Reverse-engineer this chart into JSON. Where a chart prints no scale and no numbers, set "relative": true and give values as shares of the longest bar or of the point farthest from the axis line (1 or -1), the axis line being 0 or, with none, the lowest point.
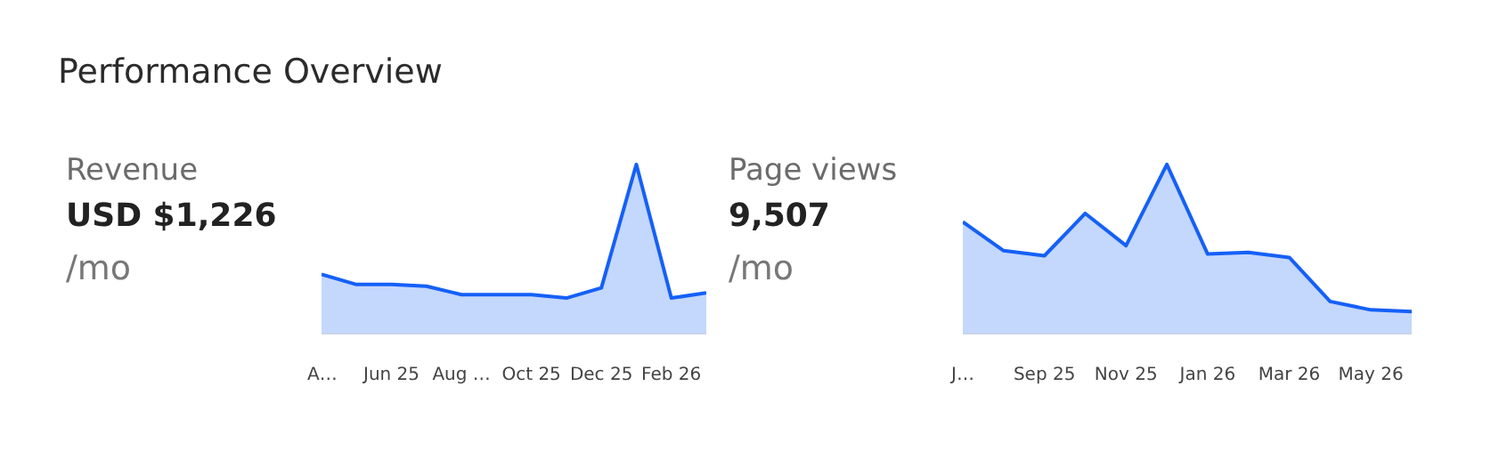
{
  "chart_data": [
    {
      "type": "other",
      "title": "Performance Overview"
    },
    {
      "type": "area",
      "title": "Revenue",
      "subtitle": "USD $1,226",
      "annotations": [
        "/mo"
      ],
      "relative": true,
      "color": "#1560f7",
      "categories": [
        "A…",
        null,
        "Jun 25",
        null,
        "Aug …",
        null,
        "Oct 25",
        null,
        "Dec 25",
        null,
        "Feb 26",
        null
      ],
      "values": [
        0.35,
        0.29,
        0.29,
        0.28,
        0.23,
        0.23,
        0.23,
        0.21,
        0.27,
        1,
        0.21,
        0.24
      ]
    },
    {
      "type": "area",
      "title": "Page views",
      "subtitle": "9,507",
      "annotations": [
        "/mo"
      ],
      "relative": true,
      "color": "#1560f7",
      "categories": [
        "J…",
        null,
        "Sep 25",
        null,
        "Nov 25",
        null,
        "Jan 26",
        null,
        "Mar 26",
        null,
        "May 26",
        null
      ],
      "values": [
        0.66,
        0.49,
        0.46,
        0.71,
        0.52,
        1,
        0.47,
        0.48,
        0.45,
        0.19,
        0.14,
        0.13
      ]
    }
  ]
}
